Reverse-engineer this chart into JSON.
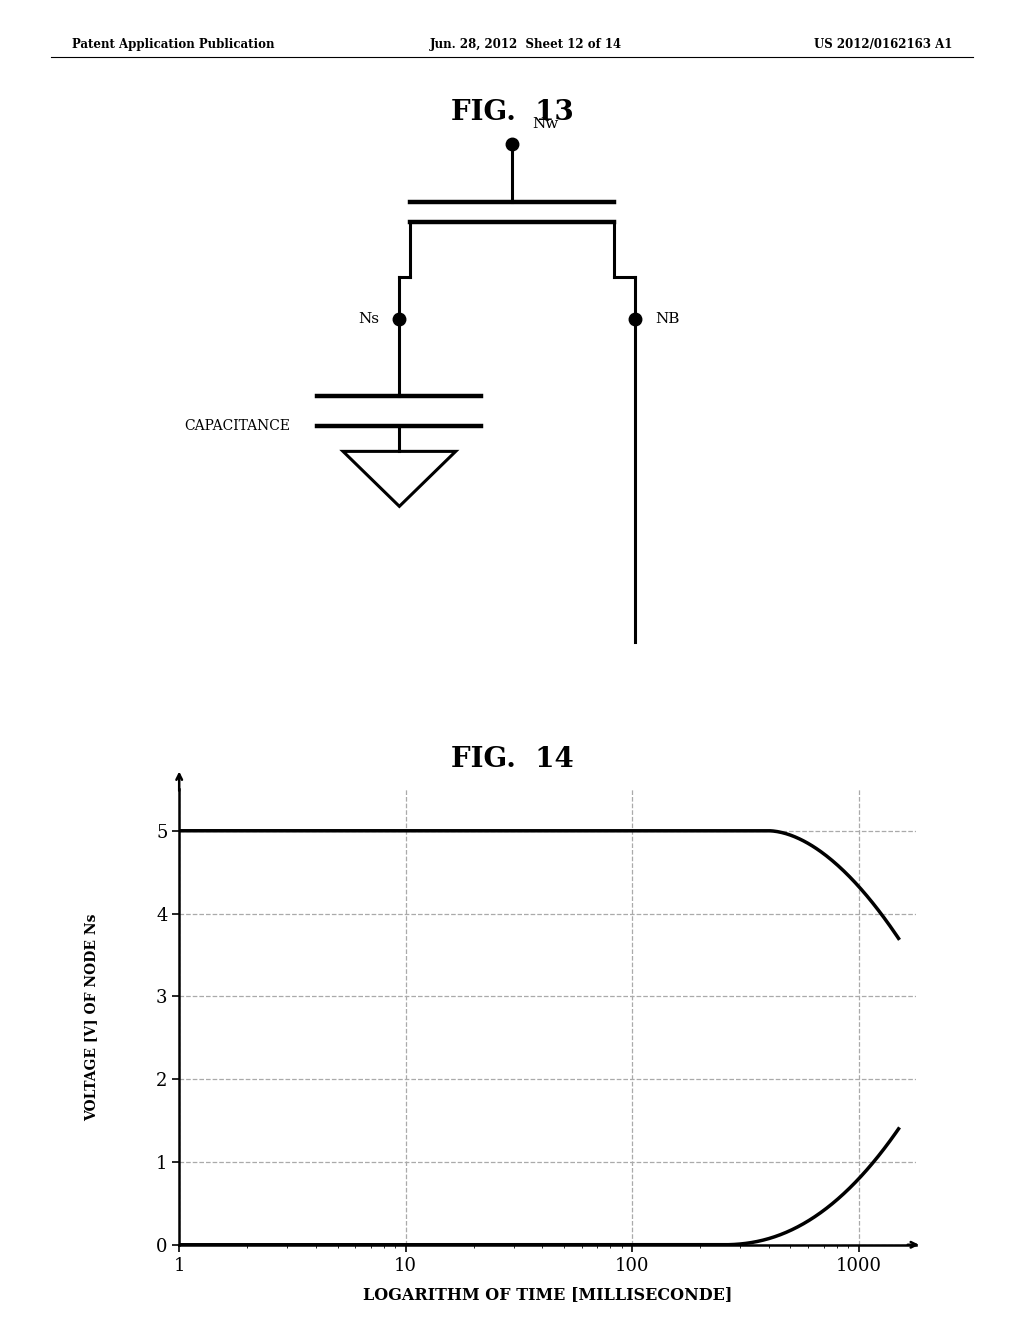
{
  "header_left": "Patent Application Publication",
  "header_mid": "Jun. 28, 2012  Sheet 12 of 14",
  "header_right": "US 2012/0162163 A1",
  "fig13_title": "FIG.  13",
  "fig14_title": "FIG.  14",
  "graph_ylabel": "VOLTAGE [V] OF NODE Ns",
  "graph_xlabel": "LOGARITHM OF TIME [MILLISECONDE]",
  "graph_yticks": [
    0,
    1,
    2,
    3,
    4,
    5
  ],
  "graph_xtick_labels": [
    "1",
    "10",
    "100",
    "1000"
  ],
  "background_color": "#ffffff",
  "line_color": "#000000",
  "grid_color": "#aaaaaa",
  "capacitance_label": "CAPACITANCE",
  "node_nw": "Nw",
  "node_ns": "Ns",
  "node_nb": "NB"
}
